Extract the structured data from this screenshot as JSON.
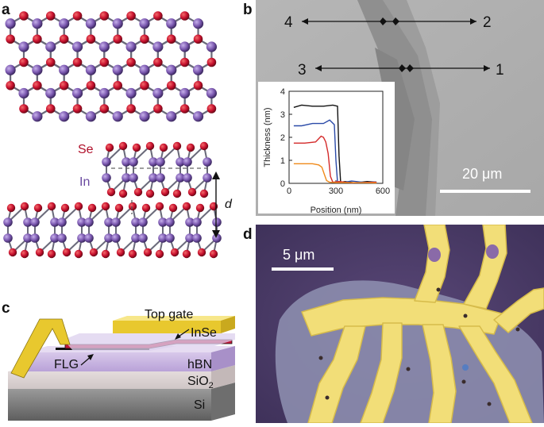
{
  "panel_labels": {
    "a": "a",
    "b": "b",
    "c": "c",
    "d": "d"
  },
  "panel_a": {
    "se_label": "Se",
    "in_label": "In",
    "d_label": "d"
  },
  "panel_b": {
    "markers": [
      "1",
      "2",
      "3",
      "4"
    ],
    "scale_bar": "20 μm",
    "chart_data": {
      "type": "line",
      "xlabel": "Position (nm)",
      "ylabel": "Thickness (nm)",
      "xlim": [
        0,
        600
      ],
      "ylim": [
        0,
        4
      ],
      "x_ticks": [
        "0",
        "300",
        "600"
      ],
      "y_ticks": [
        "0",
        "1",
        "2",
        "3",
        "4"
      ],
      "series": [
        {
          "color": "#111111",
          "x": [
            30,
            80,
            150,
            220,
            280,
            310,
            320,
            330,
            360,
            420,
            500,
            560
          ],
          "y": [
            3.3,
            3.4,
            3.35,
            3.35,
            3.4,
            3.35,
            1.2,
            0.05,
            0.08,
            0.02,
            0.08,
            0.05
          ]
        },
        {
          "color": "#2a4aa8",
          "x": [
            30,
            80,
            150,
            220,
            260,
            290,
            300,
            310,
            340,
            400,
            480,
            560
          ],
          "y": [
            2.5,
            2.5,
            2.6,
            2.6,
            2.75,
            2.55,
            1.0,
            0.05,
            0.03,
            0.1,
            0.04,
            0.06
          ]
        },
        {
          "color": "#d42a2a",
          "x": [
            30,
            100,
            170,
            205,
            220,
            235,
            250,
            265,
            280,
            320,
            400,
            560
          ],
          "y": [
            1.75,
            1.75,
            1.8,
            2.05,
            2.0,
            1.8,
            1.3,
            0.3,
            0.05,
            0.08,
            0.02,
            0.05
          ]
        },
        {
          "color": "#f08a1a",
          "x": [
            30,
            100,
            150,
            190,
            210,
            225,
            240,
            260,
            300,
            400,
            560
          ],
          "y": [
            0.85,
            0.85,
            0.85,
            0.8,
            0.7,
            0.4,
            0.12,
            0.05,
            0.03,
            0.03,
            0.02
          ]
        }
      ]
    }
  },
  "panel_c": {
    "top_gate": "Top gate",
    "inse": "InSe",
    "flg": "FLG",
    "hbn": "hBN",
    "sio2_base": "SiO",
    "sio2_sub": "2",
    "si": "Si"
  },
  "panel_d": {
    "scale_bar": "5 μm"
  },
  "colors": {
    "se_atom": "#c8102e",
    "in_atom": "#7b58b0",
    "gold": "#f2de78",
    "flake": "#8c8dae",
    "substrate_d": "#4a3b66"
  }
}
